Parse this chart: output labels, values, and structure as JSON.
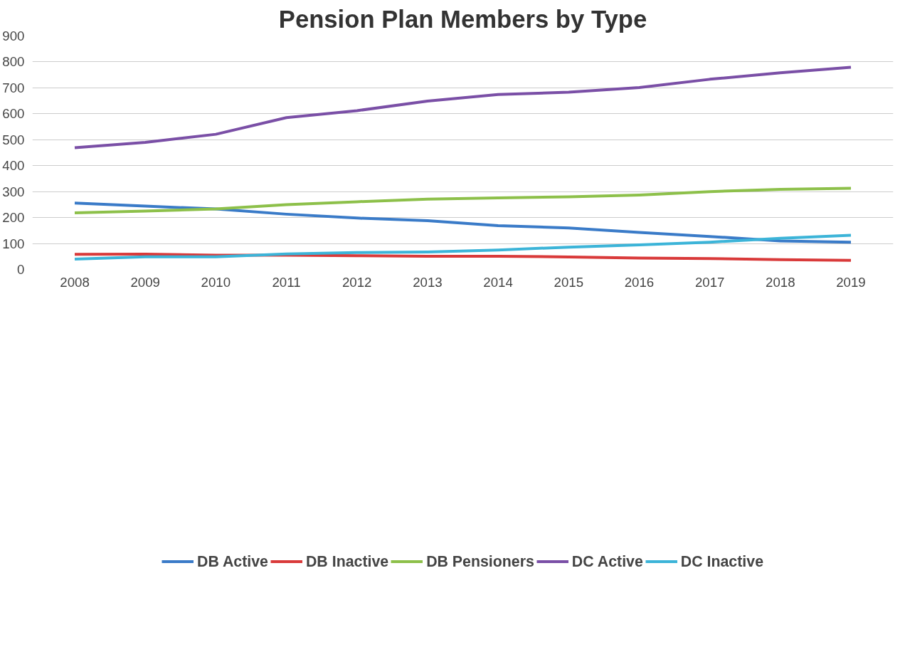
{
  "chart_data": {
    "type": "line",
    "title": "Pension Plan Members by Type",
    "categories": [
      "2008",
      "2009",
      "2010",
      "2011",
      "2012",
      "2013",
      "2014",
      "2015",
      "2016",
      "2017",
      "2018",
      "2019"
    ],
    "series": [
      {
        "name": "DB Active",
        "color": "#3a7bc8",
        "values": [
          256,
          244,
          233,
          213,
          198,
          188,
          169,
          160,
          143,
          127,
          110,
          105
        ]
      },
      {
        "name": "DB Inactive",
        "color": "#d93a3a",
        "values": [
          58,
          59,
          55,
          55,
          53,
          51,
          51,
          48,
          44,
          42,
          38,
          35
        ]
      },
      {
        "name": "DB Pensioners",
        "color": "#8dc04a",
        "values": [
          218,
          225,
          233,
          250,
          261,
          271,
          276,
          280,
          287,
          300,
          309,
          313
        ]
      },
      {
        "name": "DC Active",
        "color": "#7a4fa6",
        "values": [
          469,
          490,
          521,
          585,
          612,
          649,
          674,
          683,
          701,
          733,
          758,
          779
        ]
      },
      {
        "name": "DC Inactive",
        "color": "#3cb4d8",
        "values": [
          40,
          49,
          49,
          60,
          65,
          67,
          75,
          86,
          95,
          105,
          120,
          132
        ]
      }
    ],
    "ylim": [
      0,
      900
    ],
    "yticks": [
      0,
      100,
      200,
      300,
      400,
      500,
      600,
      700,
      800,
      900
    ],
    "grid": "y",
    "legend": "bottom",
    "line_style": "solid",
    "marker": "none"
  }
}
